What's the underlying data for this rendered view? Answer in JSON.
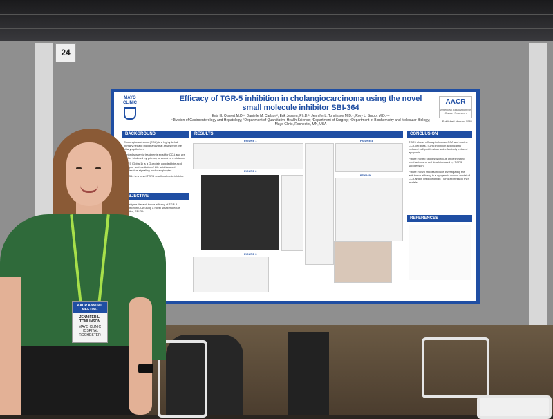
{
  "booth": {
    "number": "24"
  },
  "poster": {
    "title": "Efficacy of TGR-5 inhibition in cholangiocarcinoma using the novel small molecule inhibitor SBI-364",
    "authors": "Enis H. Ozmert M.D.¹, Danielle M. Carlson², Erik Jessen, Ph.D.³, Jennifer L. Tomlinson M.D.⁴, Rory L. Smoot M.D.¹·⁴",
    "affiliations": "¹Division of Gastroenterology and Hepatology; ²Department of Quantitative Health Science; ³Department of Surgery; ⁴Department of Biochemistry and Molecular Biology; Mayo Clinic, Rochester, MN, USA",
    "institution_logo": "MAYO CLINIC",
    "sponsor_logo": "AACR",
    "sponsor_subtitle": "American Association for Cancer Research",
    "published_abstract": "Published Abstract 5586",
    "sections": {
      "background": "BACKGROUND",
      "objective": "OBJECTIVE",
      "results": "RESULTS",
      "conclusion": "CONCLUSION",
      "references": "REFERENCES"
    },
    "figures": {
      "figure1": "FIGURE 1",
      "figure2": "FIGURE 2",
      "figure3": "FIGURE 3",
      "figure4": "FIGURE 4",
      "pdx_label": "PDX169"
    },
    "background_text": [
      "Cholangiocarcinoma (CCA) is a highly lethal primary hepatic malignancy that arises from the biliary epithelium",
      "Limited systemic treatments exist for CCA and are further hindered by primary or acquired resistance",
      "TGR5 (Gpbar1) is a G-protein coupled bile acid receptor and mediator of bile acid induced proliferative signaling in cholangiocytes",
      "SBI-364 is a novel TGR5 small molecule inhibitor"
    ],
    "objective_text": "Investigate the anti-tumor efficacy of TGR-5 inhibition in CCA using a novel small molecule inhibitor, SBI-364",
    "conclusion_text": [
      "TGR5 shows efficacy in human CCA and murine CCA cell lines. TGR5 inhibition significantly reduced cell proliferation and effectively induced apoptosis.",
      "Future in vitro studies will focus on delineating mechanisms of cell death induced by TGR5 suppression",
      "Future in vivo studies include investigating the anti-tumor efficacy in a syngeneic mouse model of CCA and in predicted high TGR5-expression PDX models"
    ]
  },
  "badge": {
    "event": "AACR ANNUAL MEETING",
    "name": "JENNIFER L. TOMLINSON",
    "org": "MAYO CLINIC HOSPITAL ROCHESTER"
  },
  "colors": {
    "poster_accent": "#1f4ea3",
    "lanyard": "#a7e04a",
    "shirt": "#2f6a3a"
  }
}
